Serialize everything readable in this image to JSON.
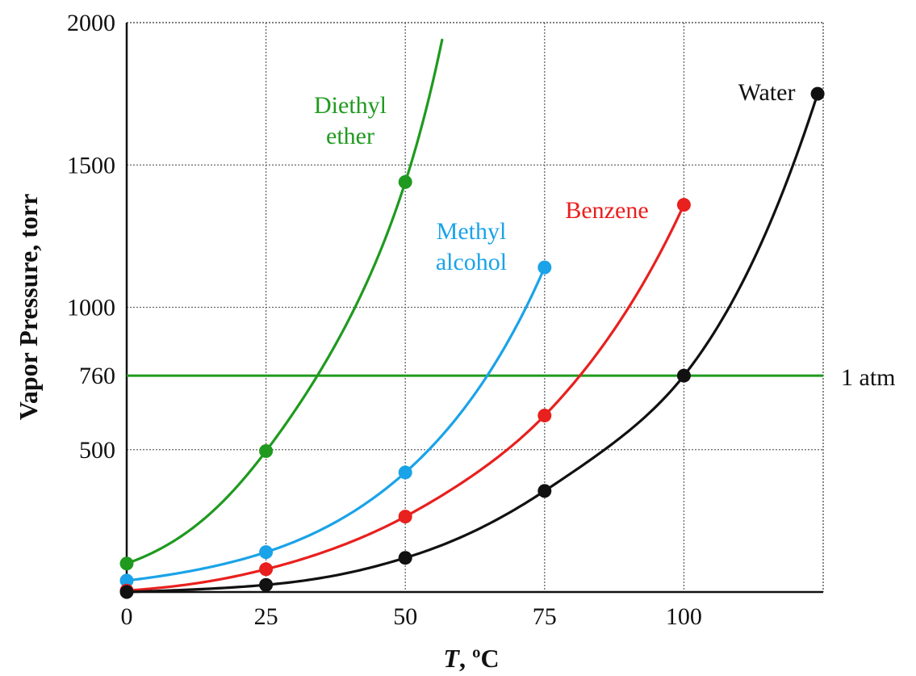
{
  "chart_data": {
    "type": "line",
    "title": "",
    "xlabel": "T, ºC",
    "xlabel_italic_part": "T",
    "xlabel_rest": ", ºC",
    "ylabel": "Vapor Pressure, torr",
    "xlim": [
      0,
      125
    ],
    "ylim": [
      0,
      2000
    ],
    "x_ticks": [
      0,
      25,
      50,
      75,
      100
    ],
    "y_ticks": [
      500,
      760,
      1000,
      1500,
      2000
    ],
    "x_tick_labels": [
      "0",
      "25",
      "50",
      "75",
      "100"
    ],
    "y_tick_labels": [
      "500",
      "760",
      "1000",
      "1500",
      "2000"
    ],
    "grid": true,
    "reference_line": {
      "y": 760,
      "label": "1 atm",
      "color": "#1f9a1f"
    },
    "series": [
      {
        "name_lines": [
          "Diethyl",
          "ether"
        ],
        "color": "#1f9a1f",
        "points": [
          [
            0,
            100
          ],
          [
            25,
            495
          ],
          [
            50,
            1440
          ]
        ],
        "curve_x_end": 56.6
      },
      {
        "name_lines": [
          "Methyl",
          "alcohol"
        ],
        "color": "#1aa3e8",
        "points": [
          [
            0,
            40
          ],
          [
            25,
            140
          ],
          [
            50,
            420
          ],
          [
            75,
            1140
          ]
        ],
        "curve_x_end": 75
      },
      {
        "name_lines": [
          "Benzene"
        ],
        "color": "#e8201e",
        "points": [
          [
            0,
            5
          ],
          [
            25,
            80
          ],
          [
            50,
            265
          ],
          [
            75,
            620
          ],
          [
            100,
            1360
          ]
        ],
        "curve_x_end": 100
      },
      {
        "name_lines": [
          "Water"
        ],
        "color": "#111111",
        "points": [
          [
            0,
            0
          ],
          [
            25,
            25
          ],
          [
            50,
            120
          ],
          [
            75,
            355
          ],
          [
            100,
            760
          ],
          [
            124,
            1750
          ]
        ],
        "curve_x_end": 124
      }
    ]
  }
}
